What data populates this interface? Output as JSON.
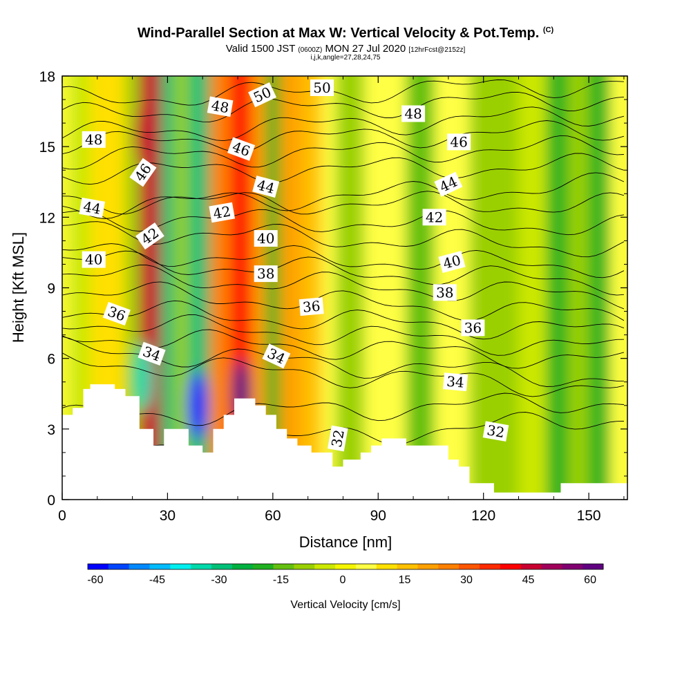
{
  "chart_data": {
    "type": "heatmap",
    "title": "Wind-Parallel Section at Max W: Vertical Velocity & Pot.Temp.",
    "title_mark": "(C)",
    "subtitle_main": "Valid 1500 JST",
    "subtitle_small1": "(0600Z)",
    "subtitle_main2": "MON 27 Jul 2020",
    "subtitle_small2": "[12hrFcst@2152z]",
    "subsubtitle": "i,j,k,angle=27,28,24,75",
    "xlabel": "Distance [nm]",
    "ylabel": "Height [Kft MSL]",
    "xlim": [
      0,
      161
    ],
    "ylim": [
      0,
      18
    ],
    "x_ticks": [
      "0",
      "30",
      "60",
      "90",
      "120",
      "150"
    ],
    "y_ticks": [
      "0",
      "3",
      "6",
      "9",
      "12",
      "15",
      "18"
    ],
    "colorbar": {
      "title": "Vertical Velocity [cm/s]",
      "tick_labels": [
        "-60",
        "-45",
        "-30",
        "-15",
        "0",
        "15",
        "30",
        "45",
        "60"
      ],
      "colors": [
        "#0000ff",
        "#0044ff",
        "#0088ff",
        "#00bbff",
        "#00eeee",
        "#00d9aa",
        "#00c078",
        "#00b040",
        "#20b020",
        "#64c010",
        "#9ad000",
        "#cce800",
        "#f5f500",
        "#ffff44",
        "#ffe000",
        "#ffc000",
        "#ffa000",
        "#ff8000",
        "#ff5500",
        "#ff2a00",
        "#ff0000",
        "#c80030",
        "#a0005a",
        "#800070",
        "#600080"
      ]
    },
    "velocity_bands": [
      {
        "x": 0,
        "w": 2,
        "value": 5
      },
      {
        "x": 2,
        "w": 6,
        "value": -5
      },
      {
        "x": 8,
        "w": 10,
        "value": 8
      },
      {
        "x": 18,
        "w": 4,
        "value": -10
      },
      {
        "x": 22,
        "w": 6,
        "value": 45
      },
      {
        "x": 28,
        "w": 4,
        "value": -30
      },
      {
        "x": 32,
        "w": 4,
        "value": -10
      },
      {
        "x": 36,
        "w": 6,
        "value": -30
      },
      {
        "x": 42,
        "w": 6,
        "value": 25
      },
      {
        "x": 48,
        "w": 6,
        "value": 40
      },
      {
        "x": 54,
        "w": 4,
        "value": 20
      },
      {
        "x": 58,
        "w": 4,
        "value": -20
      },
      {
        "x": 62,
        "w": 6,
        "value": 22
      },
      {
        "x": 68,
        "w": 6,
        "value": 15
      },
      {
        "x": 74,
        "w": 4,
        "value": 5
      },
      {
        "x": 78,
        "w": 8,
        "value": -12
      },
      {
        "x": 86,
        "w": 12,
        "value": 5
      },
      {
        "x": 98,
        "w": 8,
        "value": -15
      },
      {
        "x": 106,
        "w": 10,
        "value": 3
      },
      {
        "x": 116,
        "w": 14,
        "value": -10
      },
      {
        "x": 130,
        "w": 8,
        "value": -5
      },
      {
        "x": 138,
        "w": 6,
        "value": -18
      },
      {
        "x": 144,
        "w": 6,
        "value": -12
      },
      {
        "x": 150,
        "w": 6,
        "value": -20
      },
      {
        "x": 156,
        "w": 5,
        "value": 5
      }
    ],
    "velocity_extremes": [
      {
        "x": 23.5,
        "y": 15.5,
        "value": 45
      },
      {
        "x": 51,
        "y": 4.5,
        "value": 60
      },
      {
        "x": 38.5,
        "y": 4.0,
        "value": -60
      },
      {
        "x": 23,
        "y": 5.2,
        "value": -35
      }
    ],
    "terrain": [
      [
        0,
        3.6
      ],
      [
        3,
        3.6
      ],
      [
        3,
        3.9
      ],
      [
        6,
        3.9
      ],
      [
        6,
        4.7
      ],
      [
        8,
        4.7
      ],
      [
        8,
        4.9
      ],
      [
        15,
        4.9
      ],
      [
        15,
        4.7
      ],
      [
        18,
        4.7
      ],
      [
        18,
        4.4
      ],
      [
        22,
        4.4
      ],
      [
        22,
        3.0
      ],
      [
        26,
        3.0
      ],
      [
        26,
        2.3
      ],
      [
        29,
        2.3
      ],
      [
        29,
        3.0
      ],
      [
        36,
        3.0
      ],
      [
        36,
        2.3
      ],
      [
        40,
        2.3
      ],
      [
        40,
        2.0
      ],
      [
        43,
        2.0
      ],
      [
        43,
        3.0
      ],
      [
        46,
        3.0
      ],
      [
        46,
        3.6
      ],
      [
        49,
        3.6
      ],
      [
        49,
        4.3
      ],
      [
        55,
        4.3
      ],
      [
        55,
        4.0
      ],
      [
        58,
        4.0
      ],
      [
        58,
        3.6
      ],
      [
        61,
        3.6
      ],
      [
        61,
        3.0
      ],
      [
        64,
        3.0
      ],
      [
        64,
        2.6
      ],
      [
        67,
        2.6
      ],
      [
        67,
        2.3
      ],
      [
        71,
        2.3
      ],
      [
        71,
        2.0
      ],
      [
        77,
        2.0
      ],
      [
        77,
        1.4
      ],
      [
        80,
        1.4
      ],
      [
        80,
        1.7
      ],
      [
        85,
        1.7
      ],
      [
        85,
        2.0
      ],
      [
        88,
        2.0
      ],
      [
        88,
        2.3
      ],
      [
        91,
        2.3
      ],
      [
        91,
        2.6
      ],
      [
        98,
        2.6
      ],
      [
        98,
        2.3
      ],
      [
        110,
        2.3
      ],
      [
        110,
        1.7
      ],
      [
        113,
        1.7
      ],
      [
        113,
        1.4
      ],
      [
        116,
        1.4
      ],
      [
        116,
        0.7
      ],
      [
        123,
        0.7
      ],
      [
        123,
        0.3
      ],
      [
        142,
        0.3
      ],
      [
        142,
        0.7
      ],
      [
        161,
        0.7
      ]
    ],
    "theta_contours": [
      {
        "level": 32,
        "y_left": 1.9,
        "y_right": 3.5,
        "label_x": 119,
        "label": "32"
      },
      {
        "level": 33,
        "y_left": 3.5,
        "y_right": 4.2,
        "label": ""
      },
      {
        "level": 34,
        "y_left": 6.4,
        "y_right": 5.1,
        "label_x": 112,
        "label": "34"
      },
      {
        "level": 34.5,
        "y_left": 5.9,
        "y_right": 4.7,
        "label": ""
      },
      {
        "level": 35,
        "y_left": 7.0,
        "y_right": 5.9,
        "label": ""
      },
      {
        "level": 35.5,
        "y_left": 7.6,
        "y_right": 6.4,
        "label": ""
      },
      {
        "level": 36,
        "y_left": 8.1,
        "y_right": 7.1,
        "label_x": 117,
        "label": "36"
      },
      {
        "level": 37,
        "y_left": 8.9,
        "y_right": 7.8,
        "label": ""
      },
      {
        "level": 38,
        "y_left": 9.6,
        "y_right": 8.6,
        "label_x": 109,
        "label": "38"
      },
      {
        "level": 39,
        "y_left": 10.2,
        "y_right": 9.2,
        "label": ""
      },
      {
        "level": 40,
        "y_left": 10.5,
        "y_right": 9.9,
        "label_x": 111,
        "label": "40"
      },
      {
        "level": 41,
        "y_left": 11.5,
        "y_right": 10.7,
        "label": ""
      },
      {
        "level": 42,
        "y_left": 12.0,
        "y_right": 11.6,
        "label_x": 106,
        "label": "42"
      },
      {
        "level": 43,
        "y_left": 12.7,
        "y_right": 12.5,
        "label": ""
      },
      {
        "level": 44,
        "y_left": 12.4,
        "y_right": 13.4,
        "label_x": 110,
        "label": "44"
      },
      {
        "level": 45,
        "y_left": 13.9,
        "y_right": 14.2,
        "label": ""
      },
      {
        "level": 46,
        "y_left": 14.5,
        "y_right": 15.0,
        "label_x": 113,
        "label": "46"
      },
      {
        "level": 47,
        "y_left": 15.1,
        "y_right": 15.7,
        "label": ""
      },
      {
        "level": 48,
        "y_left": 15.5,
        "y_right": 16.4,
        "label_x": 100,
        "label": "48"
      },
      {
        "level": 49,
        "y_left": 16.3,
        "y_right": 17.1,
        "label": ""
      },
      {
        "level": 50,
        "y_left": 17.0,
        "y_right": 17.7,
        "label_x": 74,
        "label": "50"
      }
    ],
    "contour_labels": [
      {
        "x": 9,
        "y": 15.3,
        "text": "48",
        "rot": 0
      },
      {
        "x": 23,
        "y": 13.9,
        "text": "46",
        "rot": -55
      },
      {
        "x": 8.5,
        "y": 12.4,
        "text": "44",
        "rot": 10
      },
      {
        "x": 25,
        "y": 11.2,
        "text": "42",
        "rot": -35
      },
      {
        "x": 9,
        "y": 10.2,
        "text": "40",
        "rot": 0
      },
      {
        "x": 15.5,
        "y": 7.9,
        "text": "36",
        "rot": 20
      },
      {
        "x": 25.5,
        "y": 6.2,
        "text": "34",
        "rot": 20
      },
      {
        "x": 45,
        "y": 16.7,
        "text": "48",
        "rot": 10
      },
      {
        "x": 57,
        "y": 17.2,
        "text": "50",
        "rot": -25
      },
      {
        "x": 74,
        "y": 17.5,
        "text": "50",
        "rot": 0
      },
      {
        "x": 51,
        "y": 14.9,
        "text": "46",
        "rot": 20
      },
      {
        "x": 58,
        "y": 13.3,
        "text": "44",
        "rot": 15
      },
      {
        "x": 45.5,
        "y": 12.2,
        "text": "42",
        "rot": -10
      },
      {
        "x": 58,
        "y": 11.1,
        "text": "40",
        "rot": 0
      },
      {
        "x": 58,
        "y": 9.6,
        "text": "38",
        "rot": 0
      },
      {
        "x": 71,
        "y": 8.2,
        "text": "36",
        "rot": -5
      },
      {
        "x": 61,
        "y": 6.1,
        "text": "34",
        "rot": 25
      },
      {
        "x": 78.5,
        "y": 2.6,
        "text": "32",
        "rot": -80
      },
      {
        "x": 100,
        "y": 16.4,
        "text": "48",
        "rot": 0
      },
      {
        "x": 113,
        "y": 15.2,
        "text": "46",
        "rot": 0
      },
      {
        "x": 110,
        "y": 13.4,
        "text": "44",
        "rot": -25
      },
      {
        "x": 106,
        "y": 12.0,
        "text": "42",
        "rot": 0
      },
      {
        "x": 111,
        "y": 10.1,
        "text": "40",
        "rot": -15
      },
      {
        "x": 109,
        "y": 8.8,
        "text": "38",
        "rot": 0
      },
      {
        "x": 117,
        "y": 7.3,
        "text": "36",
        "rot": 0
      },
      {
        "x": 112,
        "y": 5.0,
        "text": "34",
        "rot": 5
      },
      {
        "x": 123.5,
        "y": 2.9,
        "text": "32",
        "rot": 10
      }
    ]
  }
}
